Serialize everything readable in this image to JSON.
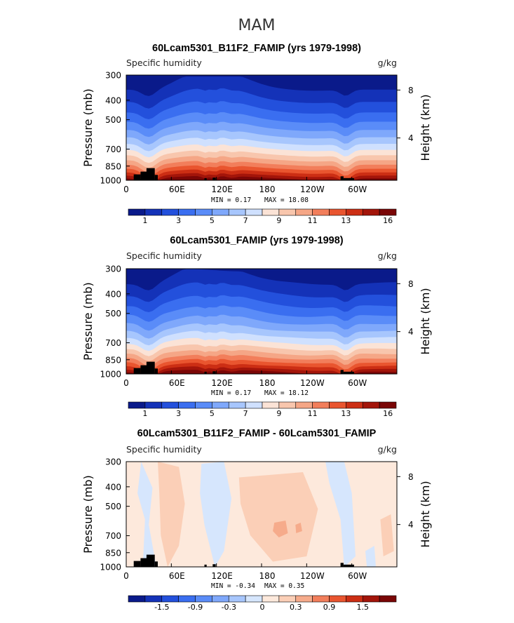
{
  "page_title": "MAM",
  "colors": {
    "seq_palette": [
      "#0a1a8a",
      "#1432b8",
      "#2350dc",
      "#3a6ef0",
      "#5a8cf8",
      "#7fa8fb",
      "#a7c6fd",
      "#cfe0fe",
      "#fbe3d6",
      "#f8c6ad",
      "#f5a686",
      "#f27e5b",
      "#e9552f",
      "#cc2e14",
      "#a3150a",
      "#7a0606"
    ],
    "diff_palette": [
      "#0a1a8a",
      "#1432b8",
      "#2350dc",
      "#3a6ef0",
      "#5a8cf8",
      "#7fa8fb",
      "#a7c6fd",
      "#d6e6fd",
      "#fde9dc",
      "#fbcfb7",
      "#f6ab8b",
      "#f27e5b",
      "#e9552f",
      "#cc2e14",
      "#a3150a",
      "#7a0606"
    ],
    "topography": "#000000"
  },
  "chart_data": [
    {
      "type": "heatmap",
      "title": "60Lcam5301_B11F2_FAMIP (yrs 1979-1998)",
      "subtitle_left": "Specific humidity",
      "subtitle_right": "g/kg",
      "ylabel": "Pressure (mb)",
      "ylabel_right": "Height (km)",
      "y_ticks": [
        "300",
        "400",
        "500",
        "700",
        "850",
        "1000"
      ],
      "y_right_ticks": [
        "8",
        "4"
      ],
      "x_ticks": [
        "0",
        "60E",
        "120E",
        "180",
        "120W",
        "60W"
      ],
      "stats": {
        "min": "MIN =    0.17",
        "max": "MAX =   18.08"
      },
      "colorbar_labels": [
        "1",
        "3",
        "5",
        "7",
        "9",
        "11",
        "13",
        "16"
      ],
      "x_range": [
        0,
        360
      ],
      "y_range": [
        300,
        1000
      ]
    },
    {
      "type": "heatmap",
      "title": "60Lcam5301_FAMIP (yrs 1979-1998)",
      "subtitle_left": "Specific humidity",
      "subtitle_right": "g/kg",
      "ylabel": "Pressure (mb)",
      "ylabel_right": "Height (km)",
      "y_ticks": [
        "300",
        "400",
        "500",
        "700",
        "850",
        "1000"
      ],
      "y_right_ticks": [
        "8",
        "4"
      ],
      "x_ticks": [
        "0",
        "60E",
        "120E",
        "180",
        "120W",
        "60W"
      ],
      "stats": {
        "min": "MIN =    0.17",
        "max": "MAX =   18.12"
      },
      "colorbar_labels": [
        "1",
        "3",
        "5",
        "7",
        "9",
        "11",
        "13",
        "16"
      ],
      "x_range": [
        0,
        360
      ],
      "y_range": [
        300,
        1000
      ]
    },
    {
      "type": "heatmap",
      "title": "60Lcam5301_B11F2_FAMIP - 60Lcam5301_FAMIP",
      "subtitle_left": "Specific humidity",
      "subtitle_right": "g/kg",
      "ylabel": "Pressure (mb)",
      "ylabel_right": "Height (km)",
      "y_ticks": [
        "300",
        "400",
        "500",
        "700",
        "850",
        "1000"
      ],
      "y_right_ticks": [
        "8",
        "4"
      ],
      "x_ticks": [
        "0",
        "60E",
        "120E",
        "180",
        "120W",
        "60W"
      ],
      "stats": {
        "min": "MIN =   -0.34",
        "max": "MAX =    0.35"
      },
      "colorbar_labels": [
        "-1.5",
        "-0.9",
        "-0.3",
        "0",
        "0.3",
        "0.9",
        "1.5"
      ],
      "x_range": [
        0,
        360
      ],
      "y_range": [
        300,
        1000
      ]
    }
  ]
}
